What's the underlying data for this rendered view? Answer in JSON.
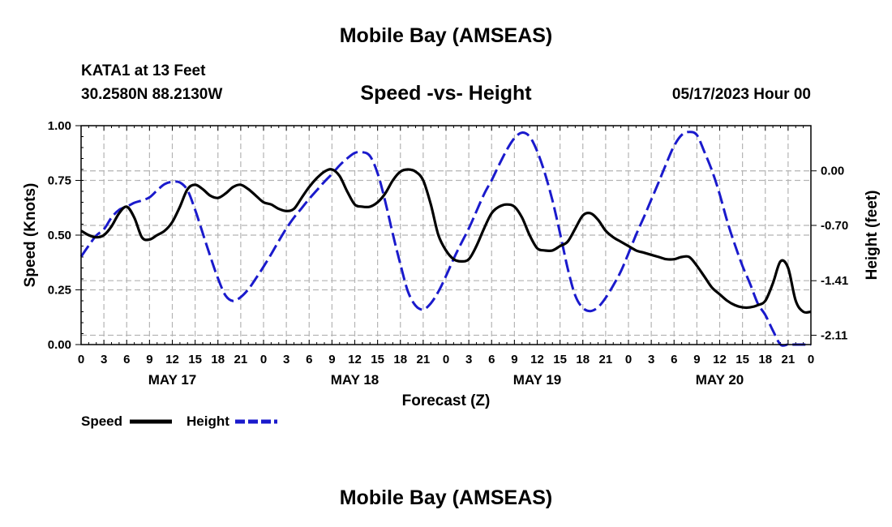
{
  "header": {
    "title": "Mobile Bay (AMSEAS)",
    "station": "KATA1 at 13 Feet",
    "coordinates": "30.2580N  88.2130W",
    "subtitle": "Speed -vs- Height",
    "datestamp": "05/17/2023 Hour 00"
  },
  "footer": {
    "title": "Mobile Bay (AMSEAS)"
  },
  "colors": {
    "speed": "#000000",
    "height": "#1a1acc",
    "grid": "#b4b4b4"
  },
  "chart_data": {
    "type": "line",
    "title": "Speed -vs- Height",
    "xlabel": "Forecast (Z)",
    "ylabel": "Speed (Knots)",
    "y2label": "Height (feet)",
    "xlim": [
      0,
      96
    ],
    "ylim": [
      0,
      1.0
    ],
    "y2lim": [
      -2.23,
      0.58
    ],
    "grid": true,
    "legend_placement": "bottom-left",
    "x_tick_labels": [
      "0",
      "3",
      "6",
      "9",
      "12",
      "15",
      "18",
      "21",
      "0",
      "3",
      "6",
      "9",
      "12",
      "15",
      "18",
      "21",
      "0",
      "3",
      "6",
      "9",
      "12",
      "15",
      "18",
      "21",
      "0",
      "3",
      "6",
      "9",
      "12",
      "15",
      "18",
      "21",
      "0"
    ],
    "x_day_labels": [
      {
        "hour": 12,
        "label": "MAY 17"
      },
      {
        "hour": 36,
        "label": "MAY 18"
      },
      {
        "hour": 60,
        "label": "MAY 19"
      },
      {
        "hour": 84,
        "label": "MAY 20"
      }
    ],
    "y_tick_labels": [
      "0.00",
      "0.25",
      "0.50",
      "0.75",
      "1.00"
    ],
    "y_tick_values": [
      0,
      0.25,
      0.5,
      0.75,
      1.0
    ],
    "y2_tick_labels": [
      "-2.11",
      "-1.41",
      "-0.70",
      "0.00"
    ],
    "y2_tick_values": [
      -2.11,
      -1.41,
      -0.7,
      0.0
    ],
    "series": [
      {
        "name": "Speed",
        "axis": "left",
        "style": "solid",
        "x": [
          0,
          1,
          2,
          3,
          4,
          5,
          6,
          7,
          8,
          9,
          10,
          11,
          12,
          13,
          14,
          15,
          16,
          17,
          18,
          19,
          20,
          21,
          22,
          23,
          24,
          25,
          26,
          27,
          28,
          29,
          30,
          31,
          32,
          33,
          34,
          35,
          36,
          37,
          38,
          39,
          40,
          41,
          42,
          43,
          44,
          45,
          46,
          47,
          48,
          49,
          50,
          51,
          52,
          53,
          54,
          55,
          56,
          57,
          58,
          59,
          60,
          61,
          62,
          63,
          64,
          65,
          66,
          67,
          68,
          69,
          70,
          71,
          72,
          73,
          74,
          75,
          76,
          77,
          78,
          79,
          80,
          81,
          82,
          83,
          84,
          85,
          86,
          87,
          88,
          89,
          90,
          91,
          92,
          93,
          94,
          95,
          96
        ],
        "values": [
          0.52,
          0.5,
          0.49,
          0.5,
          0.54,
          0.6,
          0.63,
          0.58,
          0.49,
          0.48,
          0.5,
          0.52,
          0.56,
          0.63,
          0.71,
          0.73,
          0.71,
          0.68,
          0.67,
          0.69,
          0.72,
          0.73,
          0.71,
          0.68,
          0.65,
          0.64,
          0.62,
          0.61,
          0.62,
          0.67,
          0.72,
          0.76,
          0.79,
          0.8,
          0.77,
          0.7,
          0.64,
          0.63,
          0.63,
          0.65,
          0.69,
          0.75,
          0.79,
          0.8,
          0.79,
          0.75,
          0.64,
          0.5,
          0.43,
          0.39,
          0.38,
          0.39,
          0.45,
          0.53,
          0.6,
          0.63,
          0.64,
          0.63,
          0.58,
          0.5,
          0.44,
          0.43,
          0.43,
          0.45,
          0.47,
          0.53,
          0.59,
          0.6,
          0.57,
          0.52,
          0.49,
          0.47,
          0.45,
          0.43,
          0.42,
          0.41,
          0.4,
          0.39,
          0.39,
          0.4,
          0.4,
          0.36,
          0.31,
          0.26,
          0.23,
          0.2,
          0.18,
          0.17,
          0.17,
          0.18,
          0.2,
          0.28,
          0.38,
          0.35,
          0.2,
          0.15,
          0.15
        ]
      },
      {
        "name": "Height",
        "axis": "right",
        "style": "dashed",
        "x": [
          0,
          1,
          2,
          3,
          4,
          5,
          6,
          7,
          8,
          9,
          10,
          11,
          12,
          13,
          14,
          15,
          16,
          17,
          18,
          19,
          20,
          21,
          22,
          23,
          24,
          25,
          26,
          27,
          28,
          29,
          30,
          31,
          32,
          33,
          34,
          35,
          36,
          37,
          38,
          39,
          40,
          41,
          42,
          43,
          44,
          45,
          46,
          47,
          48,
          49,
          50,
          51,
          52,
          53,
          54,
          55,
          56,
          57,
          58,
          59,
          60,
          61,
          62,
          63,
          64,
          65,
          66,
          67,
          68,
          69,
          70,
          71,
          72,
          73,
          74,
          75,
          76,
          77,
          78,
          79,
          80,
          81,
          82,
          83,
          84,
          85,
          86,
          87,
          88,
          89,
          90,
          91,
          92,
          93,
          94,
          95,
          96
        ],
        "values": [
          -1.1,
          -0.96,
          -0.83,
          -0.75,
          -0.6,
          -0.5,
          -0.46,
          -0.41,
          -0.38,
          -0.34,
          -0.25,
          -0.17,
          -0.14,
          -0.15,
          -0.25,
          -0.5,
          -0.8,
          -1.1,
          -1.38,
          -1.6,
          -1.67,
          -1.62,
          -1.52,
          -1.38,
          -1.23,
          -1.07,
          -0.9,
          -0.74,
          -0.6,
          -0.48,
          -0.36,
          -0.25,
          -0.14,
          -0.04,
          0.07,
          0.16,
          0.23,
          0.24,
          0.19,
          -0.03,
          -0.39,
          -0.81,
          -1.2,
          -1.55,
          -1.73,
          -1.78,
          -1.7,
          -1.55,
          -1.35,
          -1.13,
          -0.93,
          -0.74,
          -0.52,
          -0.3,
          -0.12,
          0.08,
          0.27,
          0.42,
          0.49,
          0.44,
          0.25,
          -0.03,
          -0.38,
          -0.8,
          -1.25,
          -1.6,
          -1.76,
          -1.8,
          -1.75,
          -1.63,
          -1.47,
          -1.29,
          -1.06,
          -0.82,
          -0.6,
          -0.37,
          -0.14,
          0.1,
          0.32,
          0.46,
          0.5,
          0.46,
          0.24,
          0.0,
          -0.3,
          -0.65,
          -0.95,
          -1.22,
          -1.45,
          -1.7,
          -1.85,
          -2.05,
          -2.23,
          -2.23,
          -2.23,
          -2.23,
          -2.23
        ]
      }
    ]
  }
}
